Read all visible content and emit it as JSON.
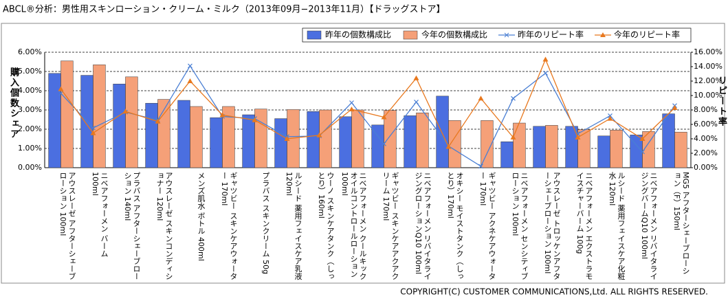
{
  "chart_data": {
    "type": "bar",
    "title": "ABCL®分析：男性用スキンローション・クリーム・ミルク（2013年09月−2013年11月）【ドラッグストア】",
    "y_label": "購入個数シェア",
    "y2_label": "リピート率",
    "footer": "COPYRIGHT(C) CUSTOMER COMMUNICATIONS,Ltd. ALL RIGHTS RESERVED.",
    "categories": [
      "アウスレーゼ アフターシェーブローション 100ml",
      "ニベアフォーメン バーム 100ml",
      "プラバス アフターシェーブローション 140ml",
      "アウスレーゼ スキンコンディショナー 120ml",
      "メンズ肌水 ボトル 400ml",
      "ギャツビー スキンケアウォーター 170ml",
      "プラバス スキンクリーム 50g",
      "ルシード 薬用フェイスケア乳液 120ml",
      "ウーノ スキンケアタンク（しっとり）160ml",
      "ニベアフォーメン クールキックオイルコントロールローション 100ml",
      "ギャツビー スキンケアアクアクリーム 170ml",
      "ニベアフォーメン リバイタライジングローションQ10 100ml",
      "オキシー モイストタンク（しっとり）170ml",
      "ギャツビー アクネケアウォーター 170ml",
      "ニベアフォーメン センシティブローション 100ml",
      "アウスレーゼ トロッケンアフターシェーブローション 100ml",
      "ニベアフォーメン エクストラモイスチャーバーム 100g",
      "ルシード 薬用フェイスケア化粧水 120ml",
      "ニベアフォーメン リバイタライジングバームQ10 100ml",
      "MG5 アフターシェーブローション（F）150ml"
    ],
    "series": [
      {
        "name": "昨年の個数構成比",
        "color": "#4b6fe0",
        "values": [
          4.9,
          4.8,
          4.35,
          3.35,
          3.5,
          2.6,
          2.75,
          2.55,
          2.92,
          2.65,
          2.22,
          2.7,
          3.72,
          0,
          1.35,
          2.15,
          2.15,
          1.65,
          1.7,
          2.8
        ]
      },
      {
        "name": "今年の個数構成比",
        "color": "#f5a078",
        "values": [
          5.55,
          5.35,
          4.72,
          3.55,
          3.18,
          3.18,
          3.05,
          3.02,
          3.0,
          3.0,
          2.98,
          2.85,
          2.45,
          2.45,
          2.32,
          2.2,
          1.98,
          1.95,
          1.88,
          1.85
        ]
      },
      {
        "name": "昨年のリピート率",
        "color": "#4a7fd4",
        "axis": "y2",
        "type": "line",
        "marker": "x",
        "values": [
          10.3,
          5.5,
          7.7,
          6.6,
          14.1,
          7.1,
          6.8,
          4.3,
          4.4,
          9.0,
          3.3,
          9.1,
          3.0,
          0.2,
          9.6,
          13.1,
          4.7,
          7.2,
          2.2,
          8.6
        ]
      },
      {
        "name": "今年のリピート率",
        "color": "#e8781e",
        "axis": "y2",
        "type": "line",
        "marker": "triangle",
        "values": [
          10.9,
          4.8,
          7.8,
          6.4,
          12.0,
          7.3,
          6.6,
          4.0,
          4.5,
          8.1,
          7.0,
          12.4,
          2.9,
          9.6,
          4.2,
          15.0,
          4.2,
          6.8,
          4.0,
          8.3
        ]
      }
    ],
    "ylim": [
      0,
      6
    ],
    "yticks": [
      {
        "value": 0,
        "label": "0.00%"
      },
      {
        "value": 1,
        "label": "1.00%"
      },
      {
        "value": 2,
        "label": "2.00%"
      },
      {
        "value": 3,
        "label": "3.00%"
      },
      {
        "value": 4,
        "label": "4.00%"
      },
      {
        "value": 5,
        "label": "5.00%"
      },
      {
        "value": 6,
        "label": "6.00%"
      }
    ],
    "y2lim": [
      0,
      16
    ],
    "y2ticks": [
      {
        "value": 0,
        "label": "0.00%"
      },
      {
        "value": 2,
        "label": "2.00%"
      },
      {
        "value": 4,
        "label": "4.00%"
      },
      {
        "value": 6,
        "label": "6.00%"
      },
      {
        "value": 8,
        "label": "8.00%"
      },
      {
        "value": 10,
        "label": "10.00%"
      },
      {
        "value": 12,
        "label": "12.00%"
      },
      {
        "value": 14,
        "label": "14.00%"
      },
      {
        "value": 16,
        "label": "16.00%"
      }
    ],
    "grid": true
  }
}
